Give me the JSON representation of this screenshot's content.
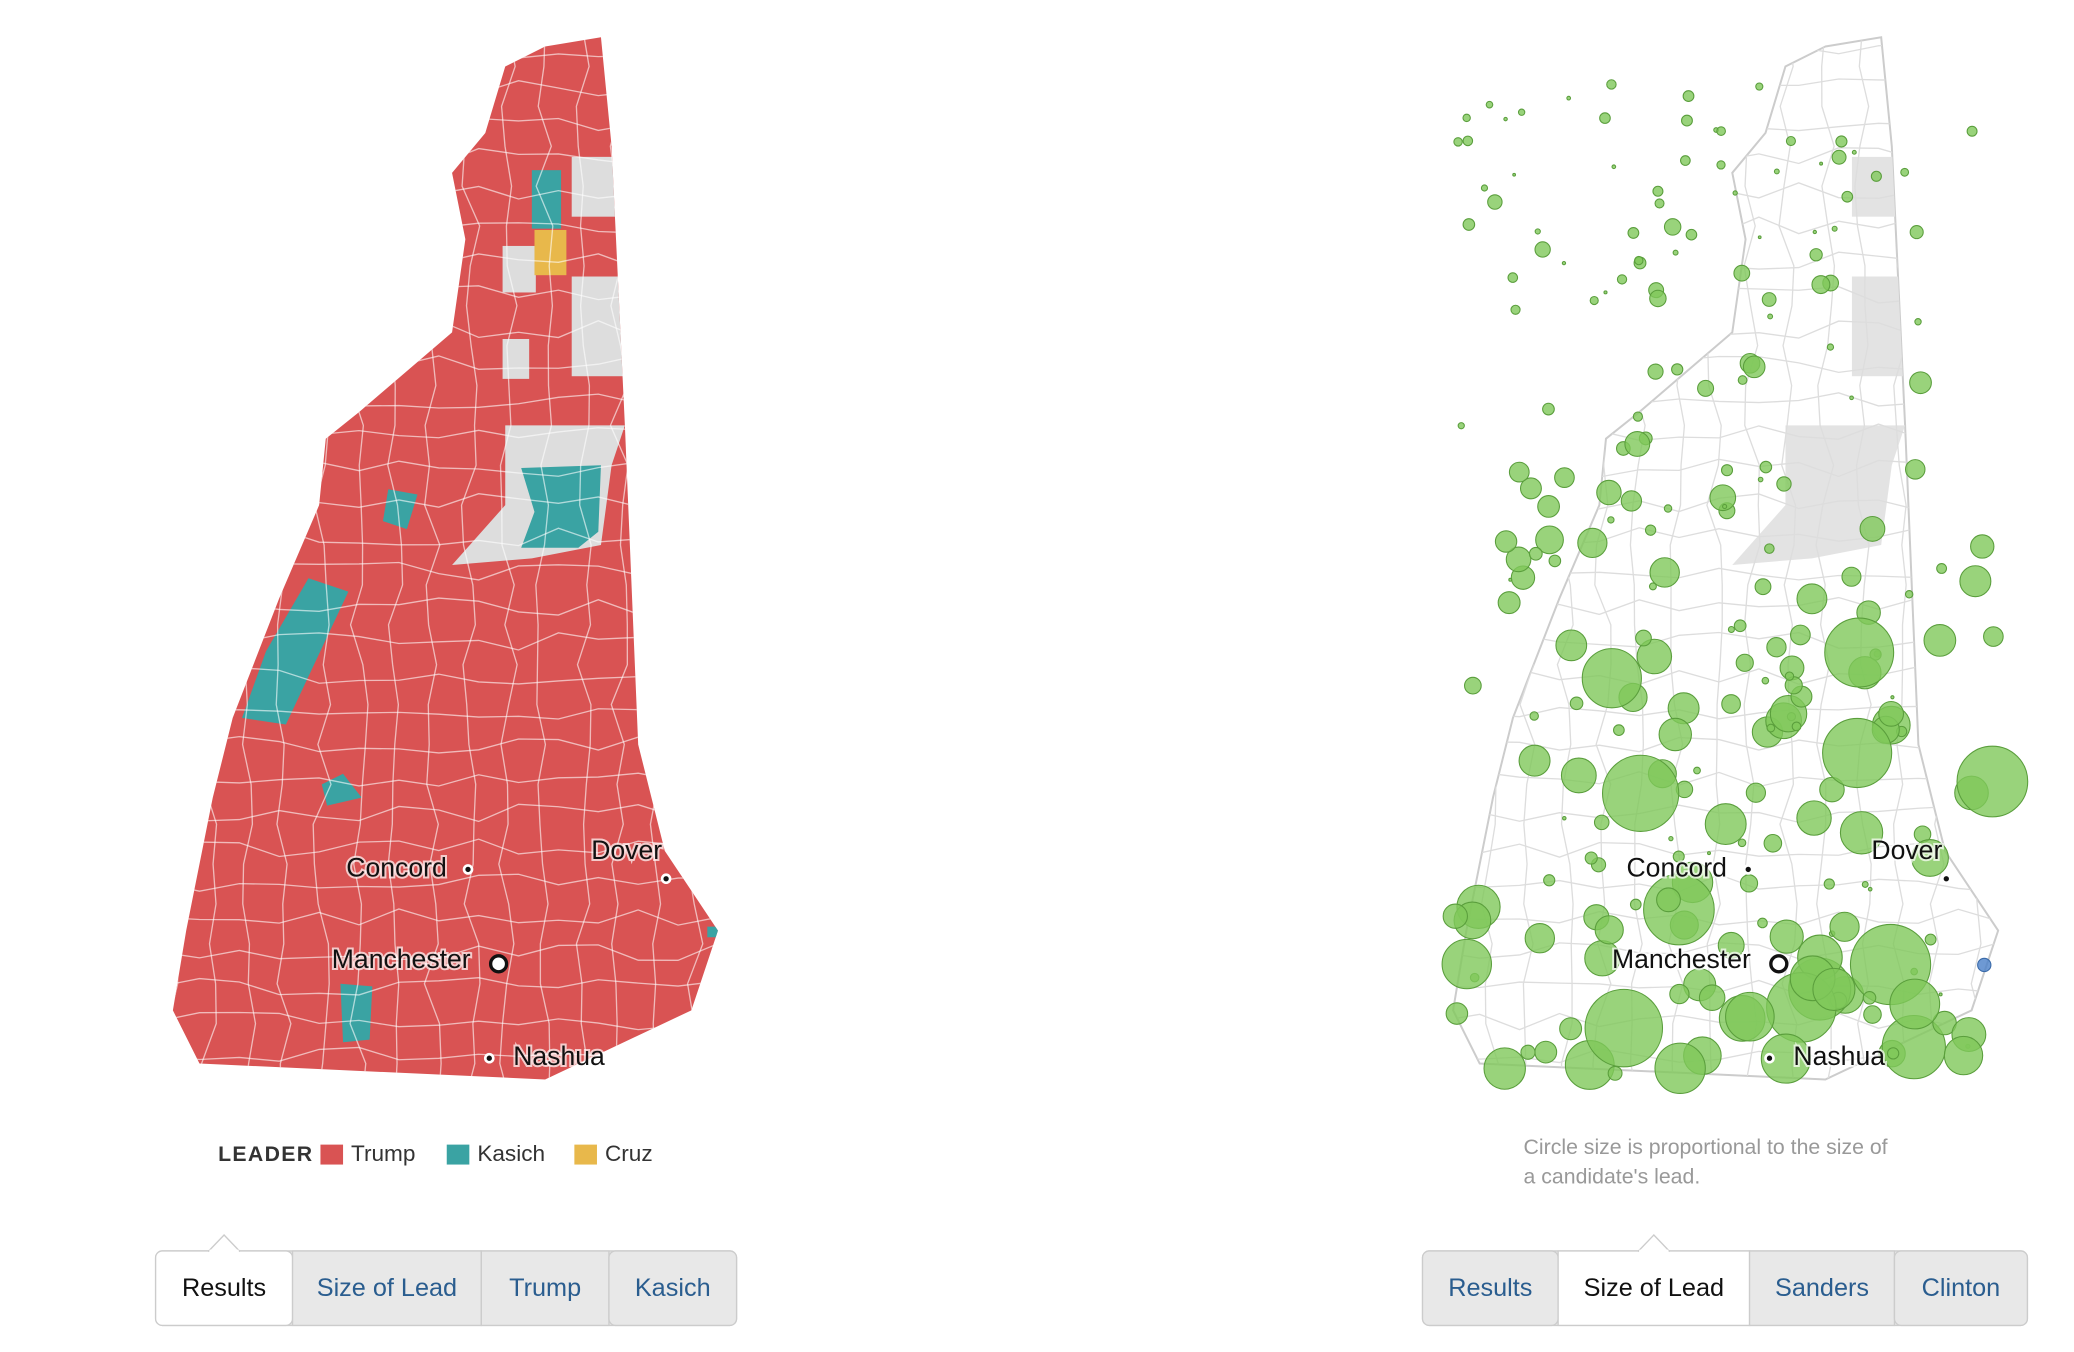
{
  "left_map": {
    "cities": [
      "Concord",
      "Dover",
      "Manchester",
      "Nashua"
    ],
    "legend": {
      "title": "LEADER",
      "items": [
        {
          "name": "Trump",
          "color": "#d95353"
        },
        {
          "name": "Kasich",
          "color": "#3aa3a3"
        },
        {
          "name": "Cruz",
          "color": "#e8b84b"
        }
      ]
    },
    "tabs": [
      "Results",
      "Size of Lead",
      "Trump",
      "Kasich"
    ]
  },
  "right_map": {
    "cities": [
      "Concord",
      "Dover",
      "Manchester",
      "Nashua"
    ],
    "note": [
      "Circle size is proportional to the size of",
      "a candidate's lead."
    ],
    "tabs": [
      "Results",
      "Size of Lead",
      "Sanders",
      "Clinton"
    ]
  }
}
